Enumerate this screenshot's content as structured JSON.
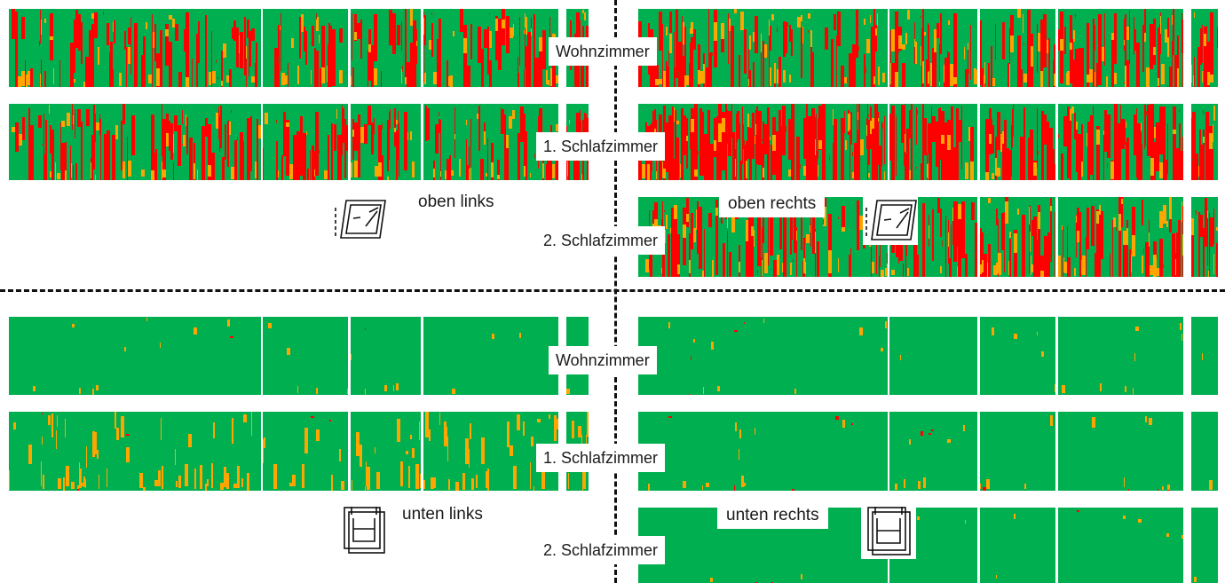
{
  "colors": {
    "green": "#00b050",
    "orange": "#ffa500",
    "red": "#ff0000",
    "darkred": "#b03000",
    "gap": "#ffffff"
  },
  "chart_data": [
    {
      "type": "heatmap",
      "quadrant": "oben links",
      "room": "Wohnzimmer",
      "dominant": "mixed green/orange/red",
      "red_level": 0.55,
      "orange_level": 0.2
    },
    {
      "type": "heatmap",
      "quadrant": "oben links",
      "room": "1. Schlafzimmer",
      "dominant": "mixed green/orange/red",
      "red_level": 0.55,
      "orange_level": 0.2
    },
    {
      "type": "heatmap",
      "quadrant": "oben rechts",
      "room": "Wohnzimmer",
      "dominant": "red",
      "red_level": 0.6,
      "orange_level": 0.25
    },
    {
      "type": "heatmap",
      "quadrant": "oben rechts",
      "room": "1. Schlafzimmer",
      "dominant": "red",
      "red_level": 0.75,
      "orange_level": 0.2
    },
    {
      "type": "heatmap",
      "quadrant": "oben rechts",
      "room": "2. Schlafzimmer",
      "dominant": "red",
      "red_level": 0.6,
      "orange_level": 0.25
    },
    {
      "type": "heatmap",
      "quadrant": "unten links",
      "room": "Wohnzimmer",
      "dominant": "green",
      "red_level": 0.01,
      "orange_level": 0.05
    },
    {
      "type": "heatmap",
      "quadrant": "unten links",
      "room": "1. Schlafzimmer",
      "dominant": "green",
      "red_level": 0.02,
      "orange_level": 0.3
    },
    {
      "type": "heatmap",
      "quadrant": "unten rechts",
      "room": "Wohnzimmer",
      "dominant": "green",
      "red_level": 0.01,
      "orange_level": 0.06
    },
    {
      "type": "heatmap",
      "quadrant": "unten rechts",
      "room": "1. Schlafzimmer",
      "dominant": "green",
      "red_level": 0.05,
      "orange_level": 0.1
    },
    {
      "type": "heatmap",
      "quadrant": "unten rechts",
      "room": "2. Schlafzimmer",
      "dominant": "green",
      "red_level": 0.02,
      "orange_level": 0.03
    }
  ],
  "labels": {
    "top_wohnzimmer": "Wohnzimmer",
    "top_schlaf1": "1. Schlafzimmer",
    "top_schlaf2": "2. Schlafzimmer",
    "bottom_wohnzimmer": "Wohnzimmer",
    "bottom_schlaf1": "1. Schlafzimmer",
    "bottom_schlaf2": "2. Schlafzimmer"
  },
  "quadrants": {
    "oben_links": "oben links",
    "oben_rechts": "oben rechts",
    "unten_links": "unten links",
    "unten_rechts": "unten rechts"
  },
  "icons": {
    "tilt_window": "tilt-window-icon",
    "bottom_hung_window": "bottom-hung-window-icon"
  }
}
